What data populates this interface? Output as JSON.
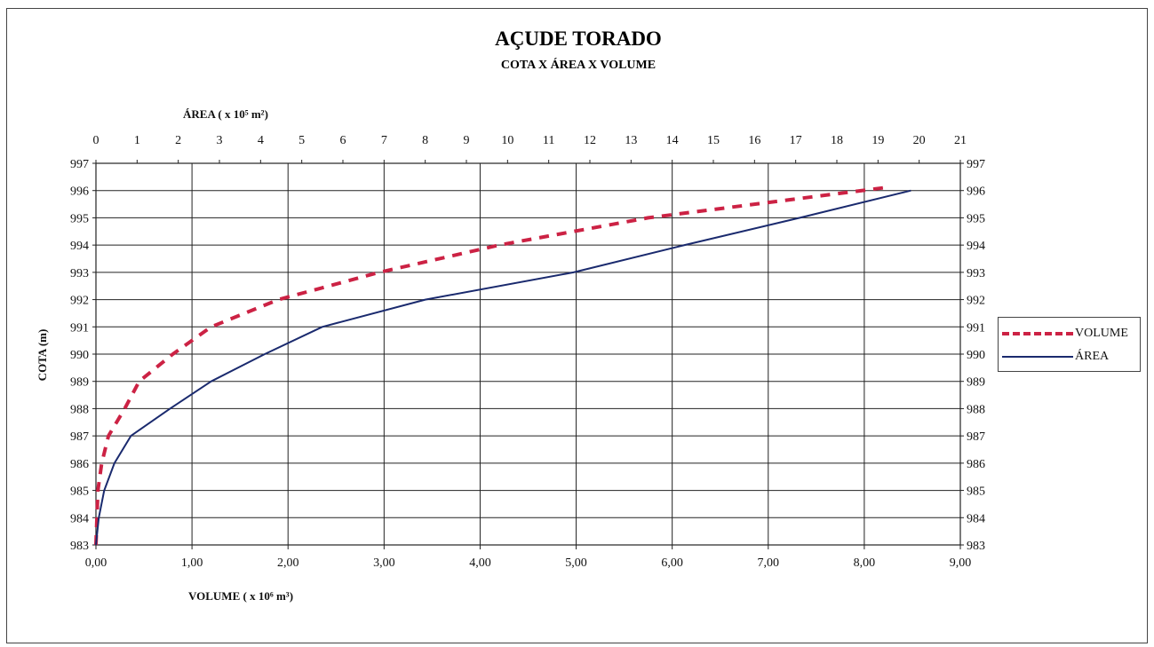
{
  "chart_data": {
    "type": "line",
    "title": "AÇUDE TORADO",
    "subtitle": "COTA X ÁREA X VOLUME",
    "ylabel": "COTA (m)",
    "xlabel_bottom": {
      "text": "VOLUME",
      "unit": "( x 10⁶ m³)"
    },
    "xlabel_top": {
      "text": "ÁREA",
      "unit": "( x 10⁵ m²)"
    },
    "y_ticks": [
      "997",
      "996",
      "995",
      "994",
      "993",
      "992",
      "991",
      "990",
      "989",
      "988",
      "987",
      "986",
      "985",
      "984",
      "983"
    ],
    "x_bottom_ticks": [
      "0,00",
      "1,00",
      "2,00",
      "3,00",
      "4,00",
      "5,00",
      "6,00",
      "7,00",
      "8,00",
      "9,00"
    ],
    "x_top_ticks": [
      "0",
      "1",
      "2",
      "3",
      "4",
      "5",
      "6",
      "7",
      "8",
      "9",
      "10",
      "11",
      "12",
      "13",
      "14",
      "15",
      "16",
      "17",
      "18",
      "19",
      "20",
      "21"
    ],
    "ylim": [
      983,
      997
    ],
    "xlim_bottom": [
      0,
      9
    ],
    "xlim_top": [
      0,
      21
    ],
    "grid": true,
    "legend_position": "right",
    "series": [
      {
        "name": "VOLUME",
        "axis": "bottom",
        "color": "#cc2244",
        "style": "dashed",
        "points": [
          [
            0.0,
            983
          ],
          [
            0.02,
            985
          ],
          [
            0.06,
            986
          ],
          [
            0.13,
            987
          ],
          [
            0.3,
            988
          ],
          [
            0.45,
            989
          ],
          [
            0.8,
            990
          ],
          [
            1.2,
            991
          ],
          [
            1.9,
            992
          ],
          [
            2.95,
            993
          ],
          [
            4.2,
            994
          ],
          [
            5.75,
            995
          ],
          [
            8.2,
            996.1
          ]
        ]
      },
      {
        "name": "ÁREA",
        "axis": "top",
        "color": "#1a2a6e",
        "style": "solid",
        "points": [
          [
            0.0,
            983
          ],
          [
            0.07,
            984
          ],
          [
            0.2,
            985
          ],
          [
            0.45,
            986
          ],
          [
            0.85,
            987
          ],
          [
            1.8,
            988
          ],
          [
            2.8,
            989
          ],
          [
            4.1,
            990
          ],
          [
            5.5,
            991
          ],
          [
            8.0,
            992
          ],
          [
            11.6,
            993
          ],
          [
            14.3,
            994
          ],
          [
            17.1,
            995
          ],
          [
            19.8,
            996
          ]
        ]
      }
    ]
  }
}
